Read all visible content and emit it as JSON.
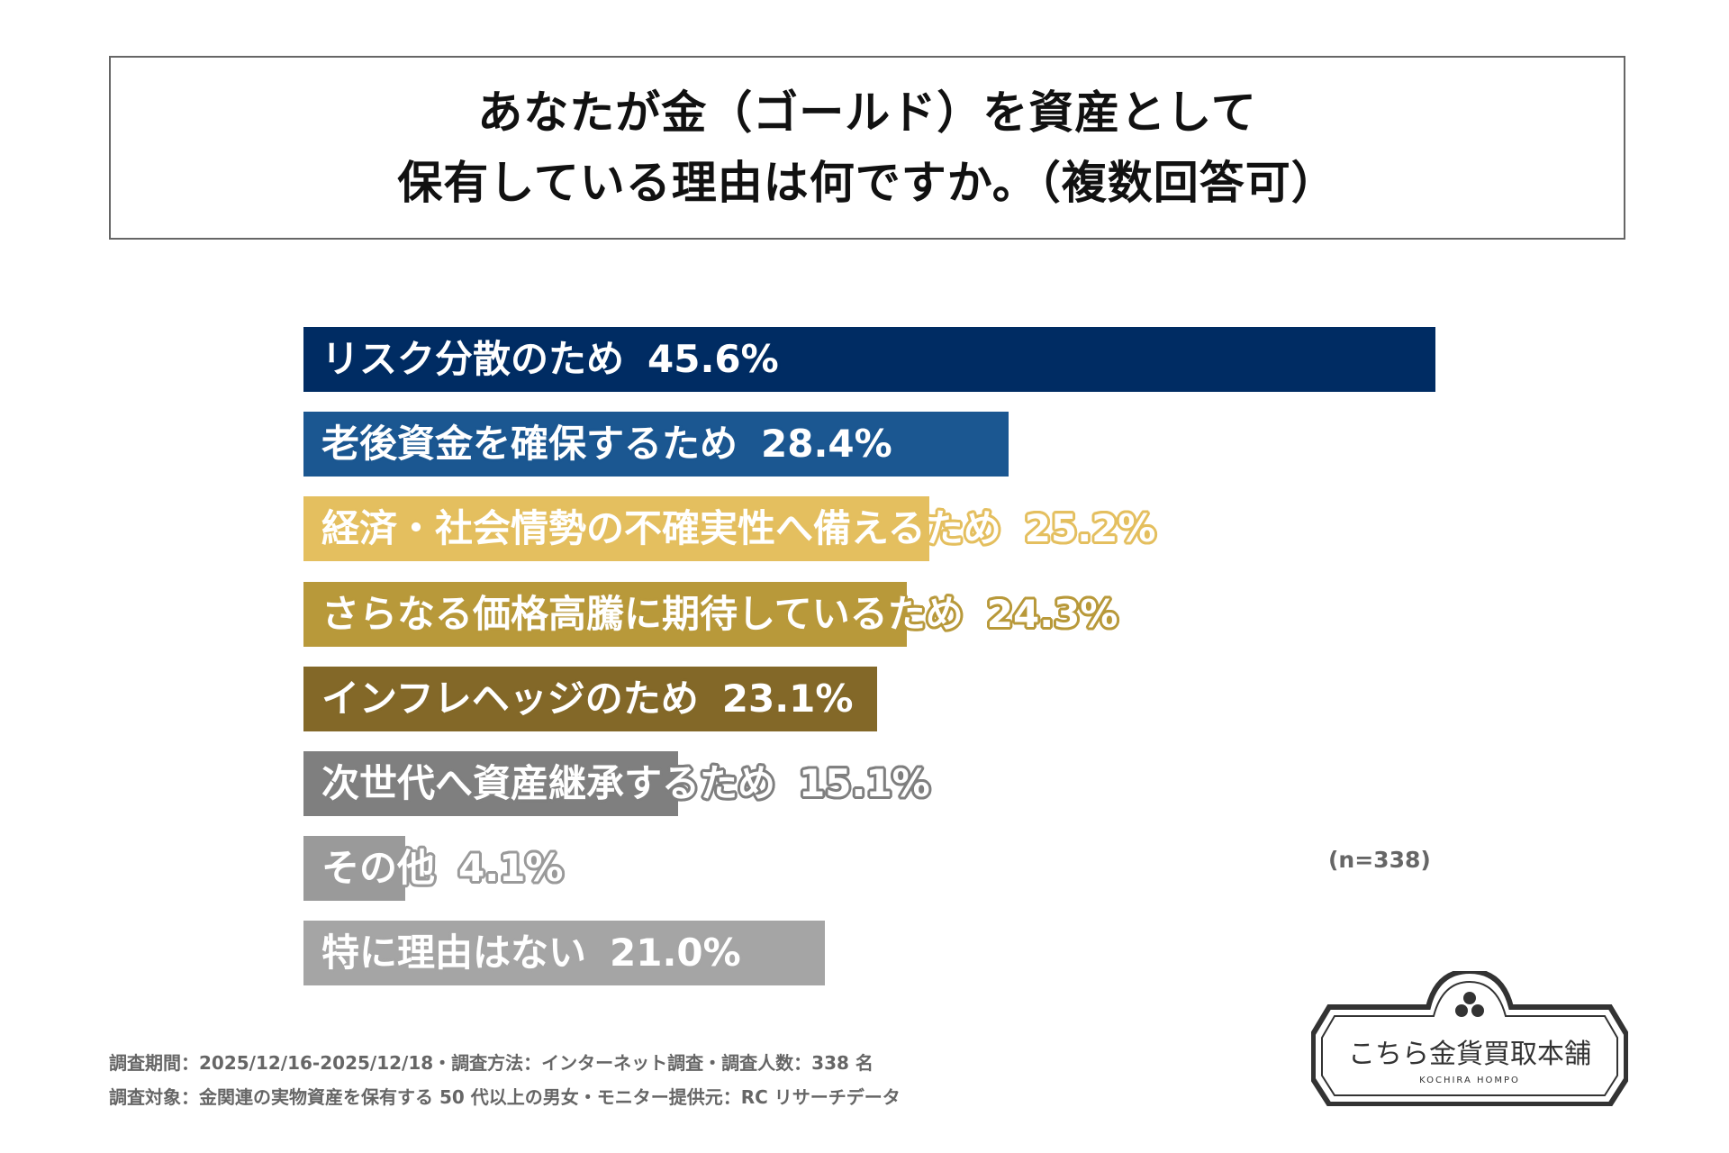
{
  "title": {
    "line1": "あなたが金（ゴールド）を資産として",
    "line2": "保有している理由は何ですか。（複数回答可）"
  },
  "chart_data": {
    "type": "bar",
    "orientation": "horizontal",
    "categories": [
      "リスク分散のため",
      "老後資金を確保するため",
      "経済・社会情勢の不確実性へ備えるため",
      "さらなる価格高騰に期待しているため",
      "インフレヘッジのため",
      "次世代へ資産継承するため",
      "その他",
      "特に理由はない"
    ],
    "values": [
      45.6,
      28.4,
      25.2,
      24.3,
      23.1,
      15.1,
      4.1,
      21.0
    ],
    "value_labels": [
      "45.6%",
      "28.4%",
      "25.2%",
      "24.3%",
      "23.1%",
      "15.1%",
      "4.1%",
      "21.0%"
    ],
    "colors": [
      "#002c63",
      "#1b5791",
      "#e4bf5f",
      "#b8993a",
      "#836828",
      "#7f7f7f",
      "#9a9a9a",
      "#a5a5a5"
    ],
    "unit": "%",
    "grid": false,
    "sample_note": "(n=338)"
  },
  "footer": {
    "line1": "調査期間：2025/12/16-2025/12/18・調査方法：インターネット調査・調査人数：338 名",
    "line2": "調査対象：金関連の実物資産を保有する 50 代以上の男女・モニター提供元：RC リサーチデータ"
  },
  "logo": {
    "name": "こちら金貨買取本舗",
    "sub": "KOCHIRA HOMPO"
  }
}
